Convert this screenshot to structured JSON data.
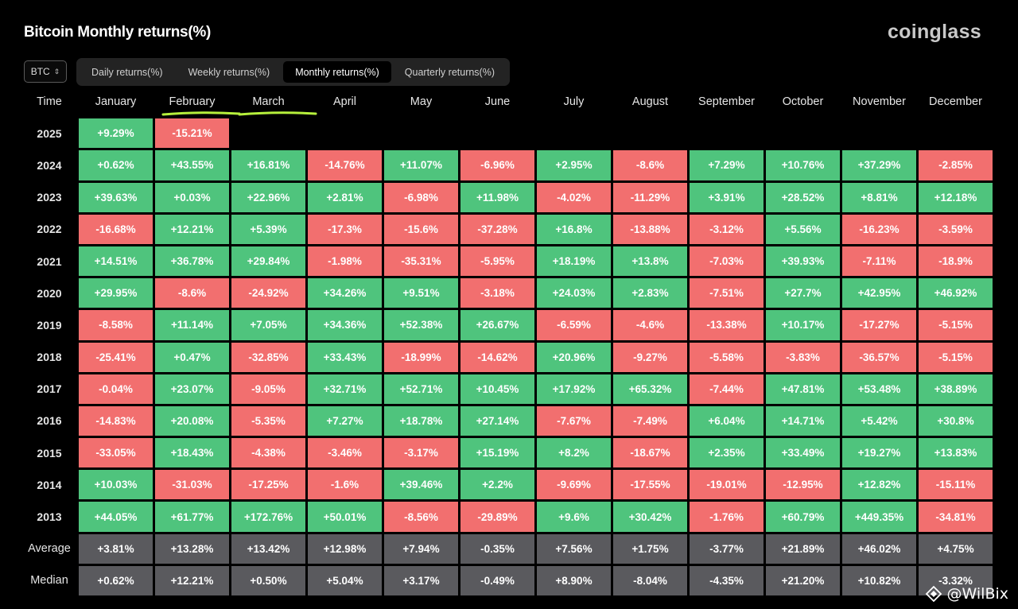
{
  "header": {
    "title": "Bitcoin Monthly returns(%)",
    "brand": "coinglass"
  },
  "asset_selector": {
    "value": "BTC"
  },
  "tabs": [
    {
      "label": "Daily returns(%)",
      "active": false
    },
    {
      "label": "Weekly returns(%)",
      "active": false
    },
    {
      "label": "Monthly returns(%)",
      "active": true
    },
    {
      "label": "Quarterly returns(%)",
      "active": false
    }
  ],
  "table": {
    "corner_label": "Time",
    "columns": [
      "January",
      "February",
      "March",
      "April",
      "May",
      "June",
      "July",
      "August",
      "September",
      "October",
      "November",
      "December"
    ],
    "underlined_columns": [
      "February",
      "March"
    ],
    "rows": [
      {
        "year": "2025",
        "values": [
          "+9.29%",
          "-15.21%",
          "",
          "",
          "",
          "",
          "",
          "",
          "",
          "",
          "",
          ""
        ]
      },
      {
        "year": "2024",
        "values": [
          "+0.62%",
          "+43.55%",
          "+16.81%",
          "-14.76%",
          "+11.07%",
          "-6.96%",
          "+2.95%",
          "-8.6%",
          "+7.29%",
          "+10.76%",
          "+37.29%",
          "-2.85%"
        ]
      },
      {
        "year": "2023",
        "values": [
          "+39.63%",
          "+0.03%",
          "+22.96%",
          "+2.81%",
          "-6.98%",
          "+11.98%",
          "-4.02%",
          "-11.29%",
          "+3.91%",
          "+28.52%",
          "+8.81%",
          "+12.18%"
        ]
      },
      {
        "year": "2022",
        "values": [
          "-16.68%",
          "+12.21%",
          "+5.39%",
          "-17.3%",
          "-15.6%",
          "-37.28%",
          "+16.8%",
          "-13.88%",
          "-3.12%",
          "+5.56%",
          "-16.23%",
          "-3.59%"
        ]
      },
      {
        "year": "2021",
        "values": [
          "+14.51%",
          "+36.78%",
          "+29.84%",
          "-1.98%",
          "-35.31%",
          "-5.95%",
          "+18.19%",
          "+13.8%",
          "-7.03%",
          "+39.93%",
          "-7.11%",
          "-18.9%"
        ]
      },
      {
        "year": "2020",
        "values": [
          "+29.95%",
          "-8.6%",
          "-24.92%",
          "+34.26%",
          "+9.51%",
          "-3.18%",
          "+24.03%",
          "+2.83%",
          "-7.51%",
          "+27.7%",
          "+42.95%",
          "+46.92%"
        ]
      },
      {
        "year": "2019",
        "values": [
          "-8.58%",
          "+11.14%",
          "+7.05%",
          "+34.36%",
          "+52.38%",
          "+26.67%",
          "-6.59%",
          "-4.6%",
          "-13.38%",
          "+10.17%",
          "-17.27%",
          "-5.15%"
        ]
      },
      {
        "year": "2018",
        "values": [
          "-25.41%",
          "+0.47%",
          "-32.85%",
          "+33.43%",
          "-18.99%",
          "-14.62%",
          "+20.96%",
          "-9.27%",
          "-5.58%",
          "-3.83%",
          "-36.57%",
          "-5.15%"
        ]
      },
      {
        "year": "2017",
        "values": [
          "-0.04%",
          "+23.07%",
          "-9.05%",
          "+32.71%",
          "+52.71%",
          "+10.45%",
          "+17.92%",
          "+65.32%",
          "-7.44%",
          "+47.81%",
          "+53.48%",
          "+38.89%"
        ]
      },
      {
        "year": "2016",
        "values": [
          "-14.83%",
          "+20.08%",
          "-5.35%",
          "+7.27%",
          "+18.78%",
          "+27.14%",
          "-7.67%",
          "-7.49%",
          "+6.04%",
          "+14.71%",
          "+5.42%",
          "+30.8%"
        ]
      },
      {
        "year": "2015",
        "values": [
          "-33.05%",
          "+18.43%",
          "-4.38%",
          "-3.46%",
          "-3.17%",
          "+15.19%",
          "+8.2%",
          "-18.67%",
          "+2.35%",
          "+33.49%",
          "+19.27%",
          "+13.83%"
        ]
      },
      {
        "year": "2014",
        "values": [
          "+10.03%",
          "-31.03%",
          "-17.25%",
          "-1.6%",
          "+39.46%",
          "+2.2%",
          "-9.69%",
          "-17.55%",
          "-19.01%",
          "-12.95%",
          "+12.82%",
          "-15.11%"
        ]
      },
      {
        "year": "2013",
        "values": [
          "+44.05%",
          "+61.77%",
          "+172.76%",
          "+50.01%",
          "-8.56%",
          "-29.89%",
          "+9.6%",
          "+30.42%",
          "-1.76%",
          "+60.79%",
          "+449.35%",
          "-34.81%"
        ]
      }
    ],
    "stats": [
      {
        "label": "Average",
        "values": [
          "+3.81%",
          "+13.28%",
          "+13.42%",
          "+12.98%",
          "+7.94%",
          "-0.35%",
          "+7.56%",
          "+1.75%",
          "-3.77%",
          "+21.89%",
          "+46.02%",
          "+4.75%"
        ]
      },
      {
        "label": "Median",
        "values": [
          "+0.62%",
          "+12.21%",
          "+0.50%",
          "+5.04%",
          "+3.17%",
          "-0.49%",
          "+8.90%",
          "-8.04%",
          "-4.35%",
          "+21.20%",
          "+10.82%",
          "-3.32%"
        ]
      }
    ]
  },
  "watermark": {
    "text": "@WilBix"
  },
  "colors": {
    "positive": "#4fc47d",
    "negative": "#f26f6f",
    "stat": "#5a5a5e",
    "underline": "#b6f03c",
    "background": "#000000"
  }
}
